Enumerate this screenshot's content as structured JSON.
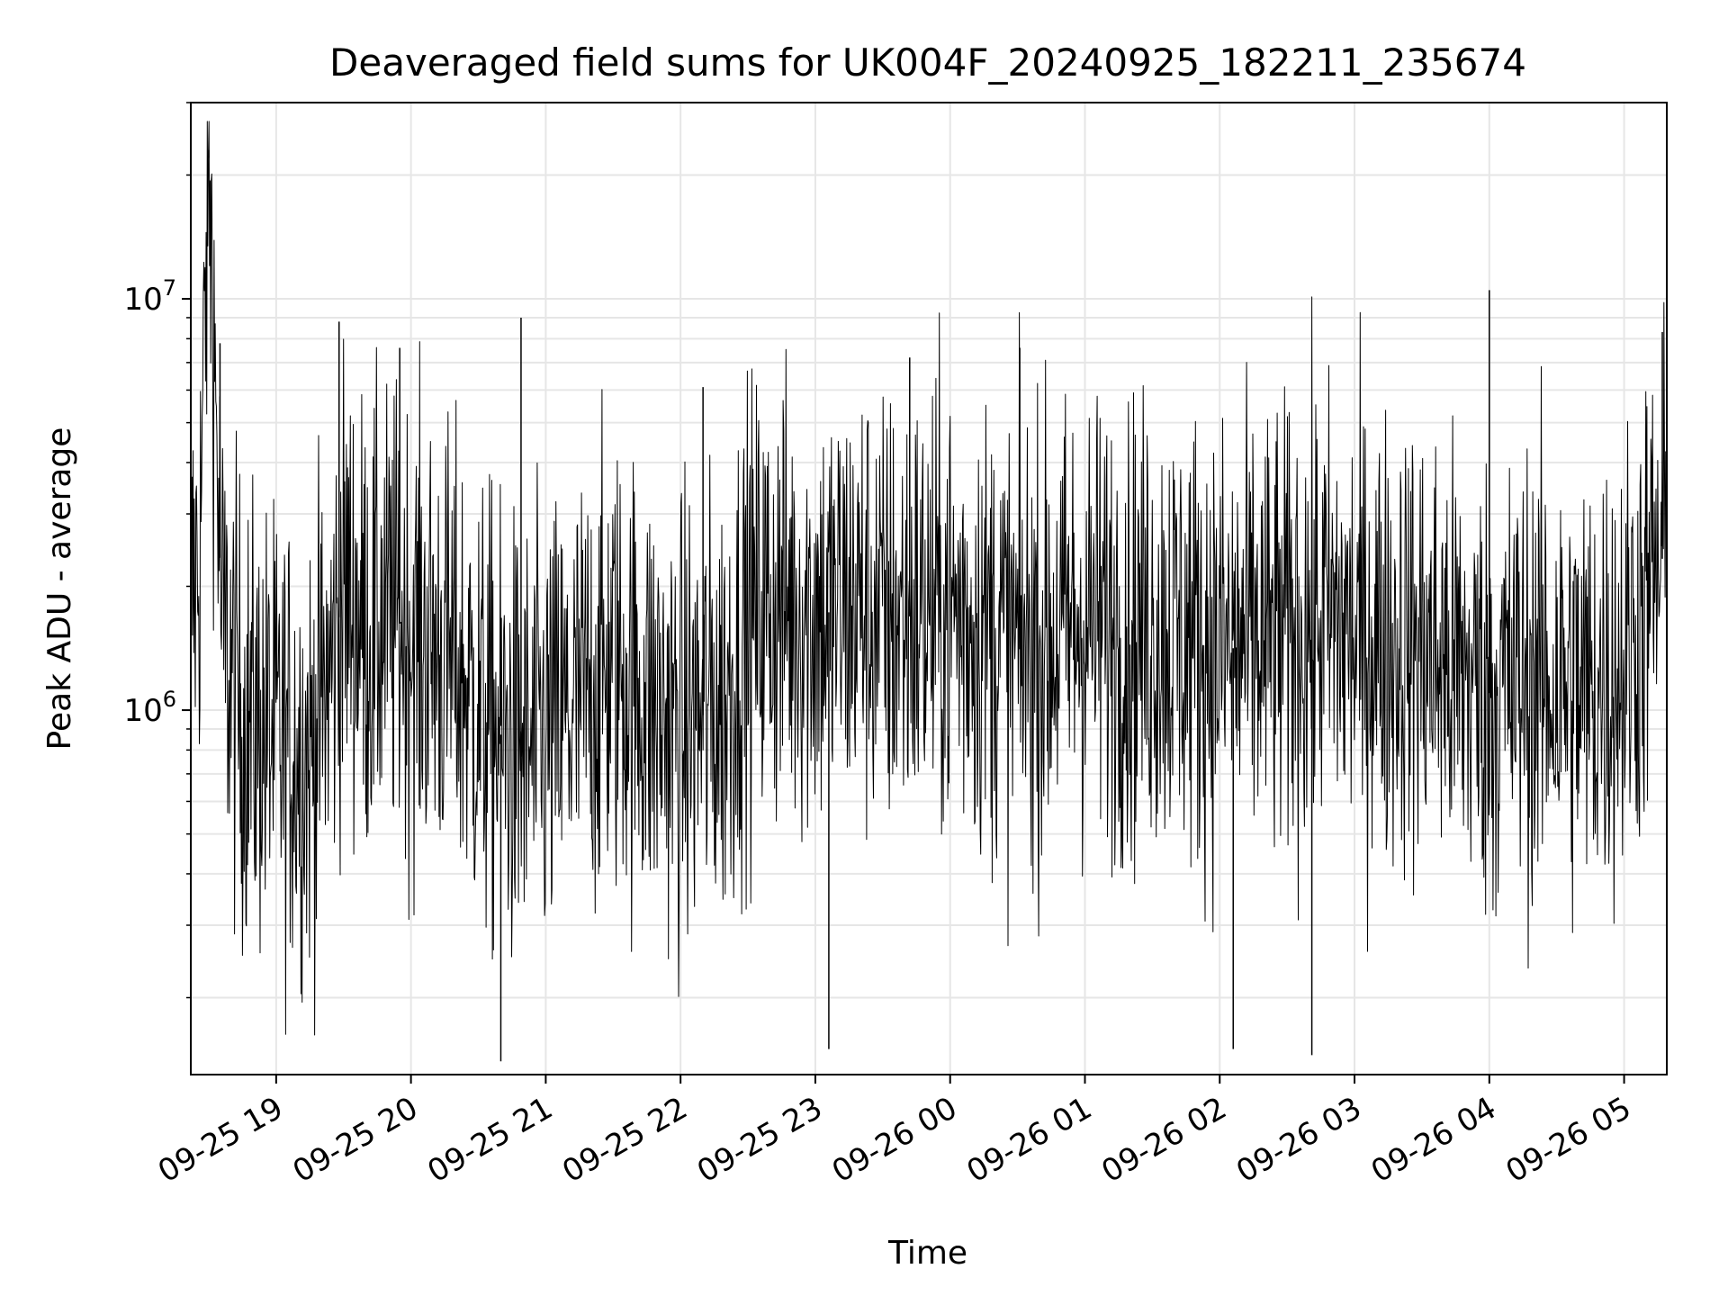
{
  "chart_data": {
    "type": "line",
    "title": "Deaveraged field sums for UK004F_20240925_182211_235674",
    "xlabel": "Time",
    "ylabel": "Peak ADU - average",
    "x_range": [
      "2024-09-25T18:22",
      "2024-09-26T05:19"
    ],
    "ylim": [
      130000,
      30000000
    ],
    "y_scale": "log",
    "grid": true,
    "line_color": "#000000",
    "x_ticks": [
      {
        "value": "2024-09-25T19:00",
        "label": "09-25 19"
      },
      {
        "value": "2024-09-25T20:00",
        "label": "09-25 20"
      },
      {
        "value": "2024-09-25T21:00",
        "label": "09-25 21"
      },
      {
        "value": "2024-09-25T22:00",
        "label": "09-25 22"
      },
      {
        "value": "2024-09-25T23:00",
        "label": "09-25 23"
      },
      {
        "value": "2024-09-26T00:00",
        "label": "09-26 00"
      },
      {
        "value": "2024-09-26T01:00",
        "label": "09-26 01"
      },
      {
        "value": "2024-09-26T02:00",
        "label": "09-26 02"
      },
      {
        "value": "2024-09-26T03:00",
        "label": "09-26 03"
      },
      {
        "value": "2024-09-26T04:00",
        "label": "09-26 04"
      },
      {
        "value": "2024-09-26T05:00",
        "label": "09-26 05"
      }
    ],
    "y_ticks": [
      {
        "value": 1000000,
        "base": "10",
        "exp": "6"
      },
      {
        "value": 10000000,
        "base": "10",
        "exp": "7"
      }
    ],
    "series": [
      {
        "values": [
          [
            "2024-09-25T18:22",
            1800000
          ],
          [
            "2024-09-25T18:26",
            2400000
          ],
          [
            "2024-09-25T18:30",
            22000000
          ],
          [
            "2024-09-25T18:36",
            1500000
          ],
          [
            "2024-09-25T18:45",
            950000
          ],
          [
            "2024-09-25T19:00",
            850000
          ],
          [
            "2024-09-25T19:15",
            780000
          ],
          [
            "2024-09-25T19:25",
            1300000
          ],
          [
            "2024-09-25T19:30",
            2000000
          ],
          [
            "2024-09-25T19:42",
            1500000
          ],
          [
            "2024-09-25T19:50",
            1700000
          ],
          [
            "2024-09-25T20:00",
            1550000
          ],
          [
            "2024-09-25T20:20",
            1300000
          ],
          [
            "2024-09-25T20:30",
            1000000
          ],
          [
            "2024-09-25T20:50",
            760000
          ],
          [
            "2024-09-25T21:05",
            900000
          ],
          [
            "2024-09-25T21:20",
            1100000
          ],
          [
            "2024-09-25T21:30",
            1300000
          ],
          [
            "2024-09-25T21:45",
            1050000
          ],
          [
            "2024-09-25T22:00",
            900000
          ],
          [
            "2024-09-25T22:20",
            1050000
          ],
          [
            "2024-09-25T22:30",
            1700000
          ],
          [
            "2024-09-25T22:45",
            1800000
          ],
          [
            "2024-09-25T23:00",
            1700000
          ],
          [
            "2024-09-25T23:20",
            1800000
          ],
          [
            "2024-09-25T23:30",
            1650000
          ],
          [
            "2024-09-25T23:45",
            1700000
          ],
          [
            "2024-09-26T00:00",
            1750000
          ],
          [
            "2024-09-26T00:20",
            1550000
          ],
          [
            "2024-09-26T00:30",
            1400000
          ],
          [
            "2024-09-26T00:45",
            1500000
          ],
          [
            "2024-09-26T01:00",
            1650000
          ],
          [
            "2024-09-26T01:20",
            1550000
          ],
          [
            "2024-09-26T01:30",
            1600000
          ],
          [
            "2024-09-26T01:45",
            1500000
          ],
          [
            "2024-09-26T02:00",
            1400000
          ],
          [
            "2024-09-26T02:20",
            1450000
          ],
          [
            "2024-09-26T02:30",
            1500000
          ],
          [
            "2024-09-26T02:45",
            1700000
          ],
          [
            "2024-09-26T03:00",
            1500000
          ],
          [
            "2024-09-26T03:20",
            1450000
          ],
          [
            "2024-09-26T03:30",
            1400000
          ],
          [
            "2024-09-26T03:45",
            1250000
          ],
          [
            "2024-09-26T04:00",
            1100000
          ],
          [
            "2024-09-26T04:20",
            1200000
          ],
          [
            "2024-09-26T04:30",
            1150000
          ],
          [
            "2024-09-26T04:45",
            1100000
          ],
          [
            "2024-09-26T05:00",
            1300000
          ],
          [
            "2024-09-26T05:19",
            2500000
          ]
        ],
        "spikes": [
          [
            "2024-09-25T18:30",
            23000000
          ],
          [
            "2024-09-25T18:35",
            7800000
          ],
          [
            "2024-09-25T19:28",
            8800000
          ],
          [
            "2024-09-25T19:55",
            7600000
          ],
          [
            "2024-09-25T20:49",
            9000000
          ],
          [
            "2024-09-25T20:40",
            140000
          ],
          [
            "2024-09-25T22:10",
            6100000
          ],
          [
            "2024-09-25T23:06",
            150000
          ],
          [
            "2024-09-25T23:42",
            7200000
          ],
          [
            "2024-09-26T00:31",
            7600000
          ],
          [
            "2024-09-26T02:06",
            150000
          ],
          [
            "2024-09-26T02:41",
            145000
          ],
          [
            "2024-09-26T04:00",
            10500000
          ],
          [
            "2024-09-26T05:17",
            8300000
          ]
        ]
      }
    ]
  }
}
